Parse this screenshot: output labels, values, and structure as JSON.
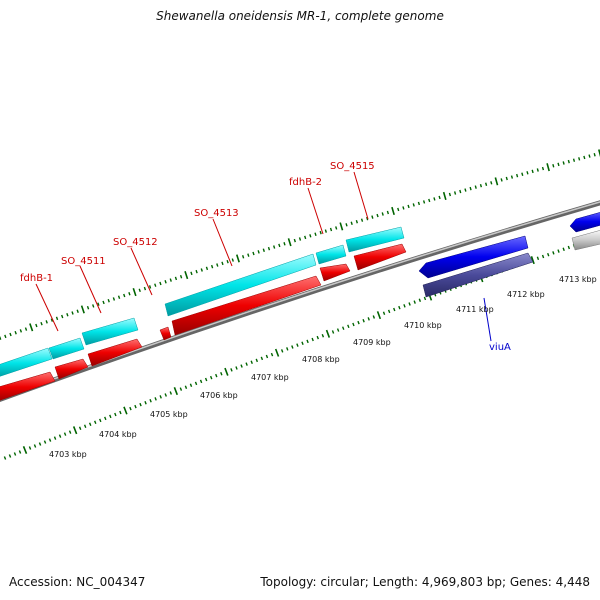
{
  "title": "Shewanella oneidensis MR-1, complete genome",
  "footer": {
    "accession": "Accession: NC_004347",
    "topology": "Topology: circular; Length: 4,969,803 bp; Genes: 4,448"
  },
  "scale_labels": [
    "4703 kbp",
    "4704 kbp",
    "4705 kbp",
    "4706 kbp",
    "4707 kbp",
    "4708 kbp",
    "4709 kbp",
    "4710 kbp",
    "4711 kbp",
    "4712 kbp",
    "4713 kbp"
  ],
  "gene_labels": [
    {
      "name": "fdhB-1",
      "color": "#cc0000"
    },
    {
      "name": "SO_4511",
      "color": "#cc0000"
    },
    {
      "name": "SO_4512",
      "color": "#cc0000"
    },
    {
      "name": "SO_4513",
      "color": "#cc0000"
    },
    {
      "name": "fdhB-2",
      "color": "#cc0000"
    },
    {
      "name": "SO_4515",
      "color": "#cc0000"
    },
    {
      "name": "viuA",
      "color": "#0000cc"
    }
  ],
  "colors": {
    "cds_cyan": "#00e5e8",
    "cds_red": "#ee0000",
    "cds_blue": "#0000ee",
    "cds_slate": "#4a4a9a",
    "backbone": "#888888",
    "tick_green": "#006400"
  }
}
